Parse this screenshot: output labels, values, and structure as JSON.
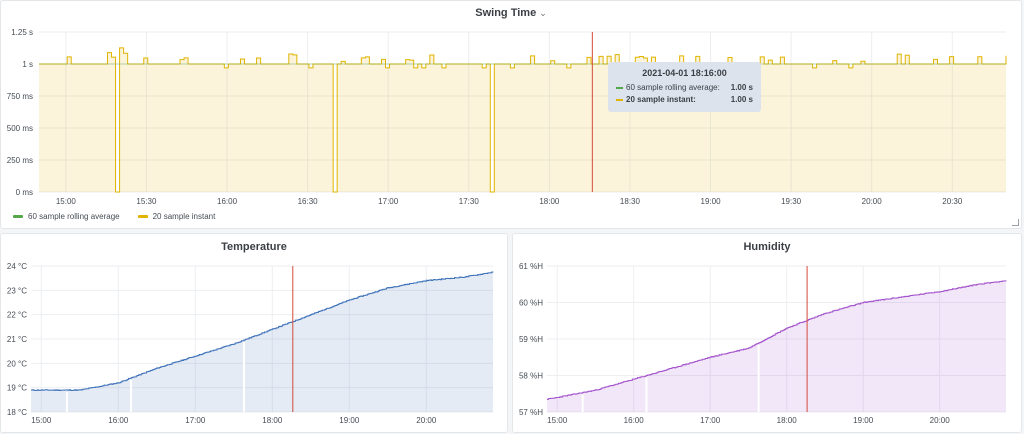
{
  "swing": {
    "title": "Swing Time",
    "yticks": [
      "1.25 s",
      "1 s",
      "750 ms",
      "500 ms",
      "250 ms",
      "0 ms"
    ],
    "xticks": [
      "15:00",
      "15:30",
      "16:00",
      "16:30",
      "17:00",
      "17:30",
      "18:00",
      "18:30",
      "19:00",
      "19:30",
      "20:00",
      "20:30"
    ],
    "legend": [
      "60 sample rolling average",
      "20 sample instant"
    ],
    "colors": {
      "rolling": "#56a64b",
      "instant": "#e0b400"
    },
    "tooltip": {
      "time": "2021-04-01 18:16:00",
      "rows": [
        {
          "label": "60 sample rolling average:",
          "value": "1.00 s"
        },
        {
          "label": "20 sample instant:",
          "value": "1.00 s"
        }
      ]
    }
  },
  "temperature": {
    "title": "Temperature",
    "yticks": [
      "24 °C",
      "23 °C",
      "22 °C",
      "21 °C",
      "20 °C",
      "19 °C",
      "18 °C"
    ],
    "xticks": [
      "15:00",
      "16:00",
      "17:00",
      "18:00",
      "19:00",
      "20:00"
    ],
    "color": "#3d71b8"
  },
  "humidity": {
    "title": "Humidity",
    "yticks": [
      "61 %H",
      "60 %H",
      "59 %H",
      "58 %H",
      "57 %H"
    ],
    "xticks": [
      "15:00",
      "16:00",
      "17:00",
      "18:00",
      "19:00",
      "20:00"
    ],
    "color": "#a352cc"
  },
  "chart_data": [
    {
      "type": "line",
      "title": "Swing Time",
      "ylabel": "",
      "ylim": [
        0,
        1.25
      ],
      "x": [
        "14:50",
        "15:00",
        "15:17",
        "15:18",
        "15:20",
        "15:30",
        "16:00",
        "16:30",
        "16:40",
        "17:00",
        "17:30",
        "17:38",
        "18:00",
        "18:30",
        "19:00",
        "19:30",
        "20:00",
        "20:30",
        "20:50"
      ],
      "series": [
        {
          "name": "20 sample instant",
          "values": [
            1.0,
            1.0,
            1.0,
            0.0,
            1.1,
            1.0,
            1.0,
            1.0,
            0.0,
            1.0,
            1.0,
            0.0,
            1.0,
            1.0,
            1.0,
            1.0,
            1.0,
            1.0,
            1.0
          ]
        },
        {
          "name": "60 sample rolling average",
          "values": [
            1.0,
            1.0,
            1.0,
            1.0,
            1.0,
            1.0,
            1.0,
            1.0,
            1.0,
            1.0,
            1.0,
            1.0,
            1.0,
            1.0,
            1.0,
            1.0,
            1.0,
            1.0,
            1.0
          ]
        }
      ],
      "grid": true,
      "legend": "bottom-left"
    },
    {
      "type": "area",
      "title": "Temperature",
      "ylim": [
        18,
        24
      ],
      "x": [
        "14:52",
        "15:00",
        "15:30",
        "16:00",
        "16:30",
        "17:00",
        "17:30",
        "18:00",
        "18:30",
        "19:00",
        "19:30",
        "20:00",
        "20:30",
        "20:52"
      ],
      "values": [
        18.9,
        18.9,
        18.9,
        19.2,
        19.8,
        20.3,
        20.8,
        21.4,
        22.0,
        22.6,
        23.1,
        23.4,
        23.55,
        23.75
      ],
      "grid": true
    },
    {
      "type": "area",
      "title": "Humidity",
      "ylim": [
        57,
        61
      ],
      "x": [
        "14:52",
        "15:00",
        "15:30",
        "16:00",
        "16:30",
        "17:00",
        "17:30",
        "18:00",
        "18:30",
        "19:00",
        "19:30",
        "20:00",
        "20:30",
        "20:52"
      ],
      "values": [
        57.35,
        57.4,
        57.6,
        57.9,
        58.2,
        58.5,
        58.75,
        59.3,
        59.7,
        60.0,
        60.15,
        60.3,
        60.5,
        60.6
      ],
      "grid": true
    }
  ]
}
